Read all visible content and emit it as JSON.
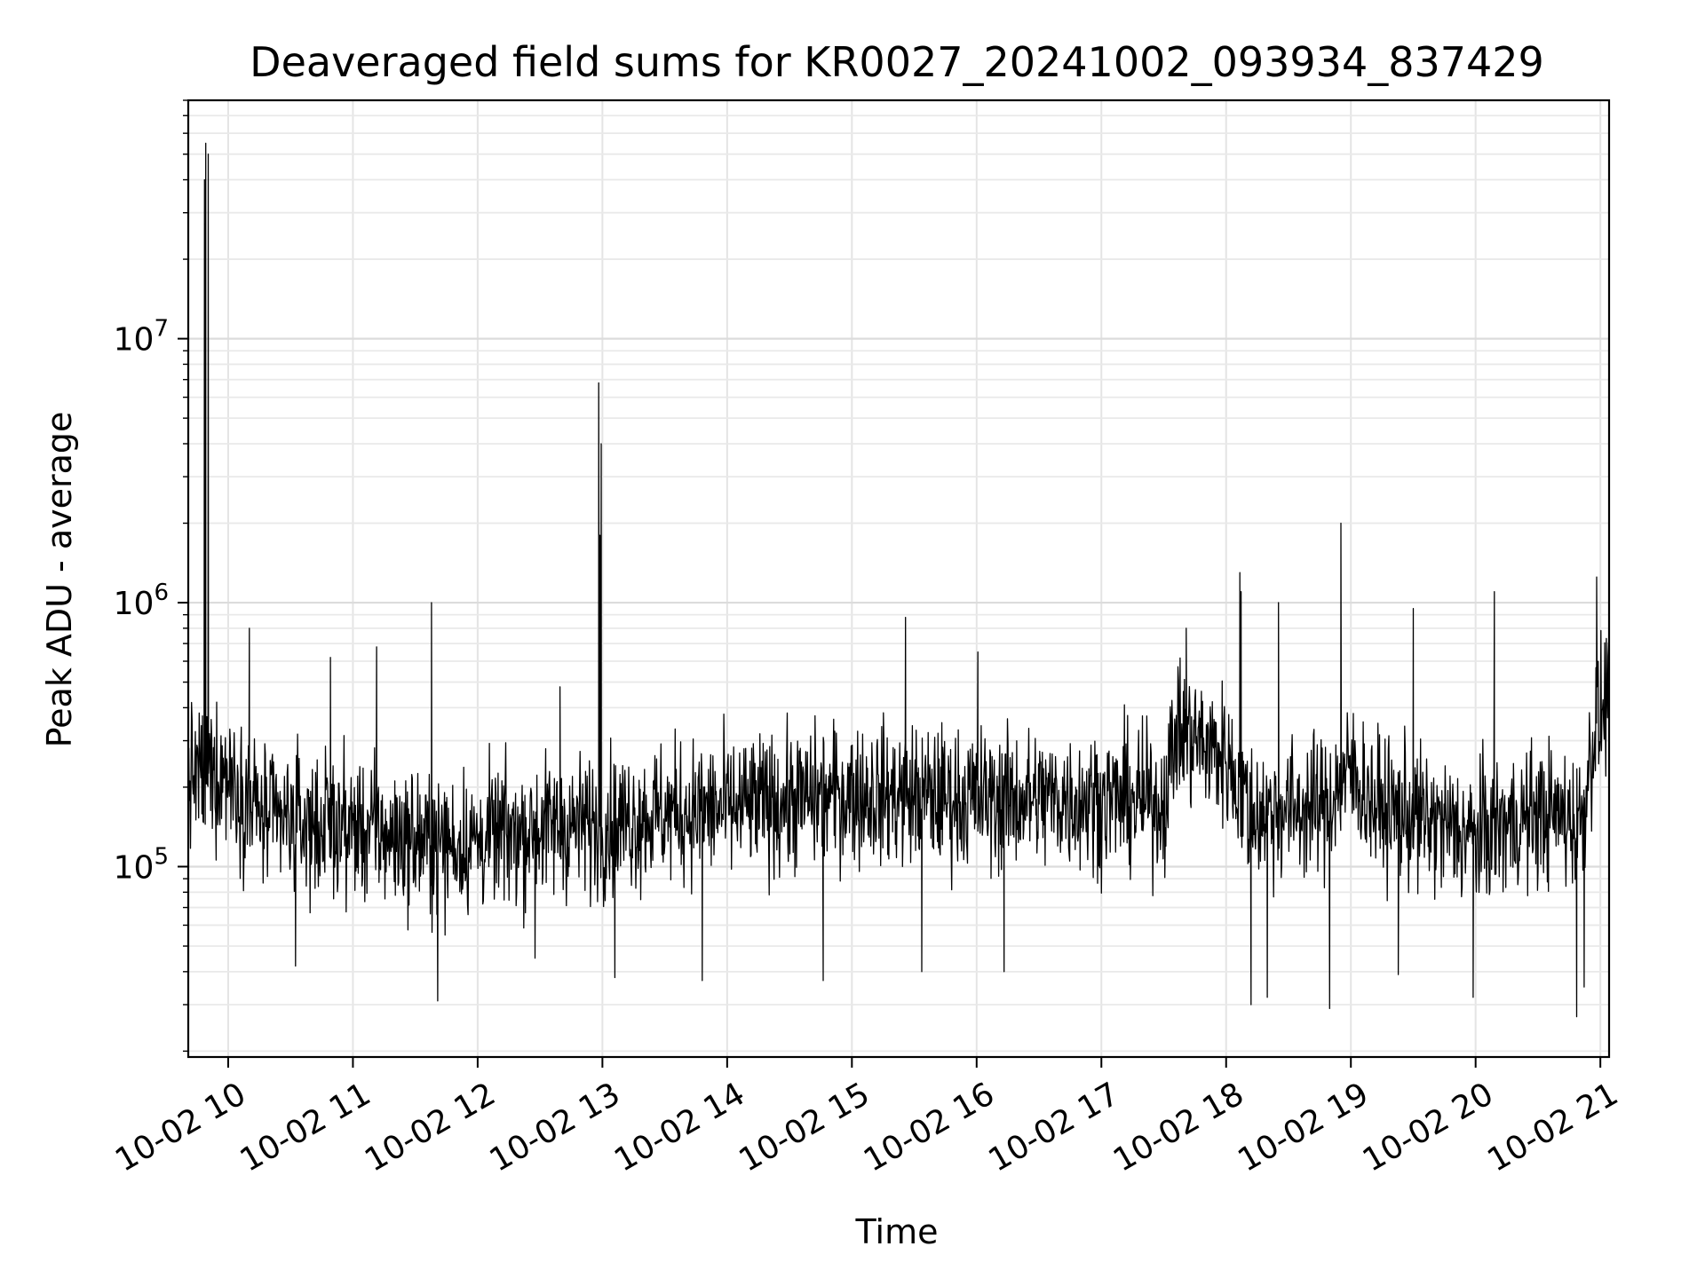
{
  "chart_data": {
    "type": "line",
    "title": "Deaveraged field sums for KR0027_20241002_093934_837429",
    "xlabel": "Time",
    "ylabel": "Peak ADU - average",
    "x_ticks": [
      "10-02 10",
      "10-02 11",
      "10-02 12",
      "10-02 13",
      "10-02 14",
      "10-02 15",
      "10-02 16",
      "10-02 17",
      "10-02 18",
      "10-02 19",
      "10-02 20",
      "10-02 21"
    ],
    "x_tick_hours": [
      10,
      11,
      12,
      13,
      14,
      15,
      16,
      17,
      18,
      19,
      20,
      21
    ],
    "xlim_hours": [
      9.68,
      21.07
    ],
    "y_scale": "log",
    "ylim": [
      19000,
      80000000
    ],
    "y_ticks": [
      {
        "value": 100000,
        "base": "10",
        "exp": "5"
      },
      {
        "value": 1000000,
        "base": "10",
        "exp": "6"
      },
      {
        "value": 10000000,
        "base": "10",
        "exp": "7"
      }
    ],
    "grid": true,
    "series": [
      {
        "color": "#000000",
        "baseline": [
          [
            9.68,
            220000
          ],
          [
            10.0,
            230000
          ],
          [
            10.3,
            150000
          ],
          [
            11.0,
            140000
          ],
          [
            11.7,
            120000
          ],
          [
            12.0,
            125000
          ],
          [
            12.5,
            140000
          ],
          [
            13.0,
            145000
          ],
          [
            13.5,
            160000
          ],
          [
            14.0,
            165000
          ],
          [
            15.0,
            190000
          ],
          [
            16.0,
            180000
          ],
          [
            17.0,
            180000
          ],
          [
            17.5,
            175000
          ],
          [
            17.6,
            330000
          ],
          [
            18.0,
            260000
          ],
          [
            18.2,
            160000
          ],
          [
            18.8,
            170000
          ],
          [
            19.0,
            230000
          ],
          [
            19.2,
            170000
          ],
          [
            20.0,
            130000
          ],
          [
            20.5,
            160000
          ],
          [
            20.85,
            150000
          ],
          [
            20.95,
            330000
          ],
          [
            21.07,
            450000
          ]
        ],
        "noise_spread_decades": 0.24,
        "spikes": [
          [
            9.82,
            55000000
          ],
          [
            9.84,
            50000000
          ],
          [
            9.81,
            40000000
          ],
          [
            10.17,
            800000
          ],
          [
            10.82,
            620000
          ],
          [
            11.19,
            680000
          ],
          [
            11.63,
            1000000
          ],
          [
            12.66,
            480000
          ],
          [
            12.97,
            6800000
          ],
          [
            12.99,
            4000000
          ],
          [
            12.98,
            1800000
          ],
          [
            15.43,
            880000
          ],
          [
            16.01,
            650000
          ],
          [
            17.68,
            800000
          ],
          [
            18.11,
            1300000
          ],
          [
            18.12,
            1100000
          ],
          [
            18.42,
            1000000
          ],
          [
            18.92,
            2000000
          ],
          [
            19.5,
            950000
          ],
          [
            20.15,
            1100000
          ],
          [
            20.97,
            1250000
          ]
        ],
        "dips": [
          [
            10.54,
            42000
          ],
          [
            11.68,
            31000
          ],
          [
            12.46,
            45000
          ],
          [
            13.1,
            38000
          ],
          [
            13.8,
            37000
          ],
          [
            14.77,
            37000
          ],
          [
            15.56,
            40000
          ],
          [
            16.22,
            40000
          ],
          [
            18.2,
            30000
          ],
          [
            18.33,
            32000
          ],
          [
            18.83,
            29000
          ],
          [
            19.38,
            39000
          ],
          [
            19.98,
            32000
          ],
          [
            20.81,
            27000
          ],
          [
            20.87,
            35000
          ]
        ]
      }
    ]
  }
}
